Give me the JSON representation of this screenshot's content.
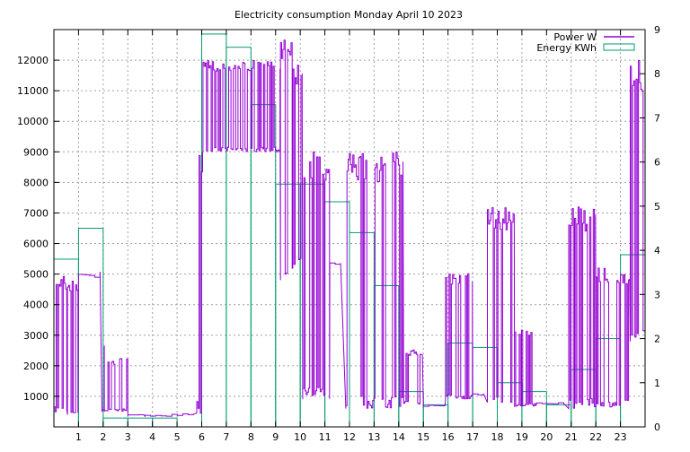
{
  "chart_data": {
    "type": "line",
    "title": "Electricity consumption Monday April 10 2023",
    "x": {
      "range": [
        0,
        24
      ],
      "ticks": [
        1,
        2,
        3,
        4,
        5,
        6,
        7,
        8,
        9,
        10,
        11,
        12,
        13,
        14,
        15,
        16,
        17,
        18,
        19,
        20,
        21,
        22,
        23
      ]
    },
    "y_left": {
      "range": [
        0,
        13000
      ],
      "ticks": [
        1000,
        2000,
        3000,
        4000,
        5000,
        6000,
        7000,
        8000,
        9000,
        10000,
        11000,
        12000
      ]
    },
    "y_right": {
      "range": [
        0,
        9
      ],
      "ticks": [
        0,
        1,
        2,
        3,
        4,
        5,
        6,
        7,
        8,
        9
      ]
    },
    "grid": true,
    "legend_position": "top-right",
    "series": [
      {
        "name": "Power W",
        "axis": "left",
        "style": "line",
        "color": "#9400d3",
        "segments": [
          {
            "x_start": 0.0,
            "x_end": 0.55,
            "low": 450,
            "high": 4950
          },
          {
            "x_start": 0.55,
            "x_end": 1.0,
            "low": 400,
            "high": 4950
          },
          {
            "x_start": 1.0,
            "x_end": 1.95,
            "low": 4850,
            "high": 5100
          },
          {
            "x_start": 1.95,
            "x_end": 2.05,
            "low": 500,
            "high": 2800
          },
          {
            "x_start": 2.05,
            "x_end": 3.0,
            "low": 500,
            "high": 2250
          },
          {
            "x_start": 3.0,
            "x_end": 3.7,
            "low": 350,
            "high": 400
          },
          {
            "x_start": 3.7,
            "x_end": 5.8,
            "low": 350,
            "high": 450
          },
          {
            "x_start": 5.8,
            "x_end": 6.05,
            "low": 450,
            "high": 9000
          },
          {
            "x_start": 6.05,
            "x_end": 9.2,
            "low": 9000,
            "high": 12000
          },
          {
            "x_start": 9.2,
            "x_end": 9.7,
            "low": 4800,
            "high": 13000
          },
          {
            "x_start": 9.7,
            "x_end": 10.1,
            "low": 5200,
            "high": 12000
          },
          {
            "x_start": 10.1,
            "x_end": 11.2,
            "low": 900,
            "high": 9000
          },
          {
            "x_start": 11.2,
            "x_end": 11.85,
            "low": 5300,
            "high": 5400
          },
          {
            "x_start": 11.85,
            "x_end": 14.2,
            "low": 600,
            "high": 9000
          },
          {
            "x_start": 14.2,
            "x_end": 15.0,
            "low": 750,
            "high": 2550
          },
          {
            "x_start": 15.0,
            "x_end": 15.9,
            "low": 650,
            "high": 750
          },
          {
            "x_start": 15.9,
            "x_end": 17.0,
            "low": 900,
            "high": 5150
          },
          {
            "x_start": 17.0,
            "x_end": 17.6,
            "low": 1000,
            "high": 1100
          },
          {
            "x_start": 17.6,
            "x_end": 18.7,
            "low": 800,
            "high": 7200
          },
          {
            "x_start": 18.7,
            "x_end": 19.6,
            "low": 650,
            "high": 3300
          },
          {
            "x_start": 19.6,
            "x_end": 20.9,
            "low": 750,
            "high": 800
          },
          {
            "x_start": 20.9,
            "x_end": 22.0,
            "low": 600,
            "high": 7200
          },
          {
            "x_start": 22.0,
            "x_end": 23.4,
            "low": 650,
            "high": 5200
          },
          {
            "x_start": 23.4,
            "x_end": 24.0,
            "low": 2800,
            "high": 12000
          }
        ]
      },
      {
        "name": "Energy KWh",
        "axis": "right",
        "style": "histogram-steps",
        "color": "#009e73",
        "values": [
          3.8,
          4.5,
          0.2,
          0.2,
          0.2,
          0.0,
          8.9,
          8.6,
          7.3,
          5.5,
          5.5,
          5.1,
          4.4,
          3.2,
          0.8,
          0.5,
          1.9,
          1.8,
          1.0,
          0.8,
          0.5,
          1.3,
          2.0,
          3.9
        ]
      }
    ]
  }
}
